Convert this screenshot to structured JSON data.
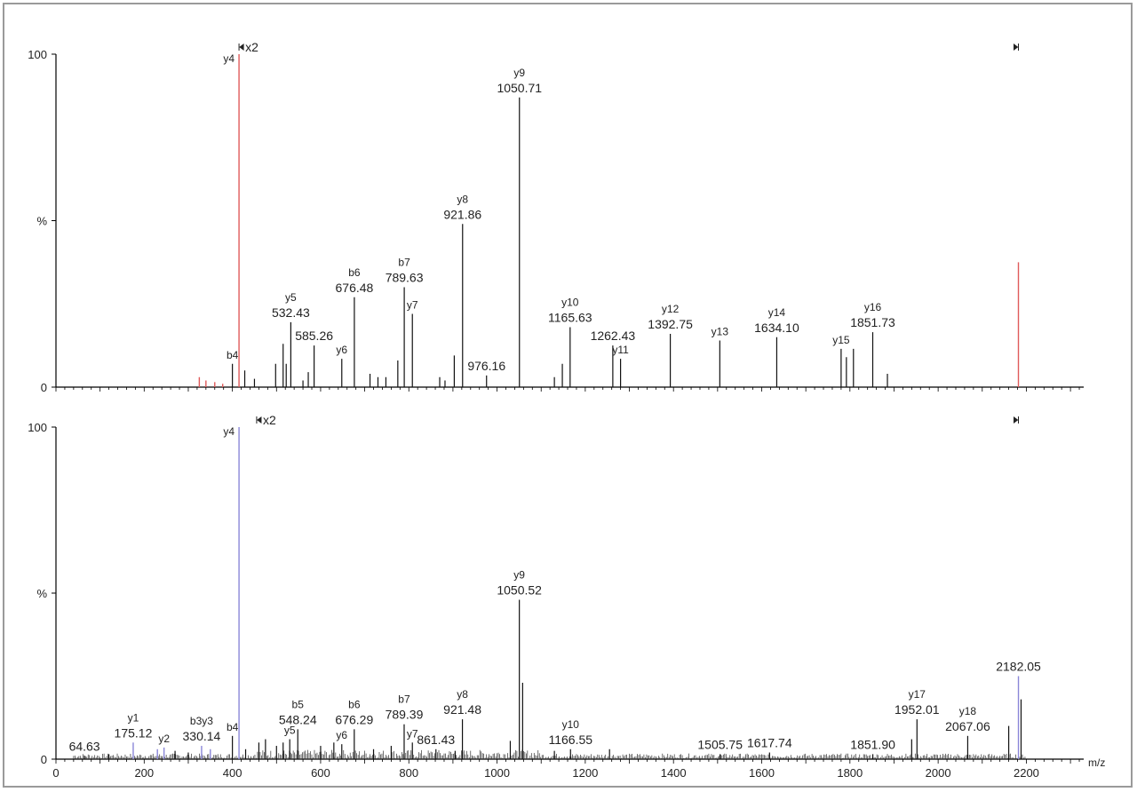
{
  "chart_data": [
    {
      "type": "bar",
      "id": "top",
      "xlim": [
        0,
        2330
      ],
      "ylim": [
        0,
        100
      ],
      "y_ticks": [
        {
          "value": 0,
          "label": "0"
        },
        {
          "value": 50,
          "label": "%"
        },
        {
          "value": 100,
          "label": "100"
        }
      ],
      "x_ticks": [],
      "xlabel": "",
      "scale_marker": {
        "label": "x2",
        "color": "#d9534f",
        "start_mz": 415,
        "end_mz": 2182
      },
      "peaks_colored": [
        {
          "mz": 415.0,
          "intensity": 100,
          "color": "#e05a5a"
        },
        {
          "mz": 2182.0,
          "intensity": 37.5,
          "color": "#e05a5a"
        },
        {
          "mz": 325,
          "intensity": 3,
          "color": "#e05a5a"
        },
        {
          "mz": 340,
          "intensity": 2,
          "color": "#e05a5a"
        },
        {
          "mz": 360,
          "intensity": 1.5,
          "color": "#e05a5a"
        },
        {
          "mz": 378,
          "intensity": 1,
          "color": "#e05a5a"
        }
      ],
      "peaks": [
        {
          "mz": 400,
          "intensity": 7
        },
        {
          "mz": 428,
          "intensity": 5
        },
        {
          "mz": 450,
          "intensity": 2.5
        },
        {
          "mz": 498,
          "intensity": 7
        },
        {
          "mz": 515,
          "intensity": 13
        },
        {
          "mz": 522,
          "intensity": 7
        },
        {
          "mz": 532.43,
          "intensity": 19.5
        },
        {
          "mz": 560,
          "intensity": 2
        },
        {
          "mz": 572,
          "intensity": 4.5
        },
        {
          "mz": 585.26,
          "intensity": 12.5
        },
        {
          "mz": 648,
          "intensity": 8.5
        },
        {
          "mz": 676.48,
          "intensity": 27
        },
        {
          "mz": 712,
          "intensity": 4
        },
        {
          "mz": 730,
          "intensity": 3
        },
        {
          "mz": 748,
          "intensity": 3
        },
        {
          "mz": 775,
          "intensity": 8
        },
        {
          "mz": 789.63,
          "intensity": 30
        },
        {
          "mz": 808,
          "intensity": 22
        },
        {
          "mz": 870,
          "intensity": 3
        },
        {
          "mz": 882,
          "intensity": 2
        },
        {
          "mz": 903,
          "intensity": 9.5
        },
        {
          "mz": 921.86,
          "intensity": 49
        },
        {
          "mz": 976.16,
          "intensity": 3.5
        },
        {
          "mz": 1050.71,
          "intensity": 87
        },
        {
          "mz": 1130,
          "intensity": 3
        },
        {
          "mz": 1148,
          "intensity": 7
        },
        {
          "mz": 1165.63,
          "intensity": 18
        },
        {
          "mz": 1262.43,
          "intensity": 12.5
        },
        {
          "mz": 1280,
          "intensity": 8.5
        },
        {
          "mz": 1392.75,
          "intensity": 16
        },
        {
          "mz": 1505,
          "intensity": 14
        },
        {
          "mz": 1634.1,
          "intensity": 15
        },
        {
          "mz": 1780,
          "intensity": 11.5
        },
        {
          "mz": 1792,
          "intensity": 9
        },
        {
          "mz": 1808,
          "intensity": 11.5
        },
        {
          "mz": 1851.73,
          "intensity": 16.5
        },
        {
          "mz": 1885,
          "intensity": 4
        }
      ],
      "annotations": [
        {
          "mz": 415,
          "intensity": 100,
          "ion": "y4",
          "value": "",
          "side": "left"
        },
        {
          "mz": 1050.71,
          "intensity": 87,
          "ion": "y9",
          "value": "1050.71"
        },
        {
          "mz": 921.86,
          "intensity": 49,
          "ion": "y8",
          "value": "921.86"
        },
        {
          "mz": 789.63,
          "intensity": 30,
          "ion": "b7",
          "value": "789.63"
        },
        {
          "mz": 808,
          "intensity": 22,
          "ion": "y7",
          "value": ""
        },
        {
          "mz": 676.48,
          "intensity": 27,
          "ion": "b6",
          "value": "676.48"
        },
        {
          "mz": 532.43,
          "intensity": 19.5,
          "ion": "y5",
          "value": "532.43"
        },
        {
          "mz": 585.26,
          "intensity": 12.5,
          "ion": "",
          "value": "585.26"
        },
        {
          "mz": 648,
          "intensity": 8.5,
          "ion": "y6",
          "value": ""
        },
        {
          "mz": 400,
          "intensity": 7,
          "ion": "b4",
          "value": ""
        },
        {
          "mz": 976.16,
          "intensity": 3.5,
          "ion": "",
          "value": "976.16"
        },
        {
          "mz": 1165.63,
          "intensity": 18,
          "ion": "y10",
          "value": "1165.63"
        },
        {
          "mz": 1262.43,
          "intensity": 12.5,
          "ion": "",
          "value": "1262.43"
        },
        {
          "mz": 1280,
          "intensity": 8.5,
          "ion": "y11",
          "value": ""
        },
        {
          "mz": 1392.75,
          "intensity": 16,
          "ion": "y12",
          "value": "1392.75"
        },
        {
          "mz": 1505,
          "intensity": 14,
          "ion": "y13",
          "value": ""
        },
        {
          "mz": 1634.1,
          "intensity": 15,
          "ion": "y14",
          "value": "1634.10"
        },
        {
          "mz": 1780,
          "intensity": 11.5,
          "ion": "y15",
          "value": ""
        },
        {
          "mz": 1851.73,
          "intensity": 16.5,
          "ion": "y16",
          "value": "1851.73"
        }
      ]
    },
    {
      "type": "bar",
      "id": "bottom",
      "xlim": [
        0,
        2330
      ],
      "ylim": [
        0,
        100
      ],
      "y_ticks": [
        {
          "value": 0,
          "label": "0"
        },
        {
          "value": 50,
          "label": "%"
        },
        {
          "value": 100,
          "label": "100"
        }
      ],
      "x_ticks": [
        {
          "value": 0,
          "label": "0"
        },
        {
          "value": 200,
          "label": "200"
        },
        {
          "value": 400,
          "label": "400"
        },
        {
          "value": 600,
          "label": "600"
        },
        {
          "value": 800,
          "label": "800"
        },
        {
          "value": 1000,
          "label": "1000"
        },
        {
          "value": 1200,
          "label": "1200"
        },
        {
          "value": 1400,
          "label": "1400"
        },
        {
          "value": 1600,
          "label": "1600"
        },
        {
          "value": 1800,
          "label": "1800"
        },
        {
          "value": 2000,
          "label": "2000"
        },
        {
          "value": 2200,
          "label": "2200"
        }
      ],
      "xlabel": "m/z",
      "scale_marker": {
        "label": "x2",
        "color": "#d9534f",
        "start_mz": 455,
        "end_mz": 2182
      },
      "peaks_colored": [
        {
          "mz": 415.0,
          "intensity": 100,
          "color": "#8a86d8"
        },
        {
          "mz": 2182.05,
          "intensity": 25,
          "color": "#8a86d8"
        },
        {
          "mz": 175.12,
          "intensity": 5,
          "color": "#8a86d8"
        },
        {
          "mz": 230,
          "intensity": 3,
          "color": "#8a86d8"
        },
        {
          "mz": 245,
          "intensity": 3.5,
          "color": "#8a86d8"
        },
        {
          "mz": 330.14,
          "intensity": 4,
          "color": "#8a86d8"
        },
        {
          "mz": 350,
          "intensity": 3,
          "color": "#8a86d8"
        }
      ],
      "peaks": [
        {
          "mz": 64.63,
          "intensity": 1
        },
        {
          "mz": 120,
          "intensity": 1.5
        },
        {
          "mz": 270,
          "intensity": 2.5
        },
        {
          "mz": 300,
          "intensity": 2
        },
        {
          "mz": 400,
          "intensity": 7
        },
        {
          "mz": 430,
          "intensity": 3
        },
        {
          "mz": 460,
          "intensity": 5
        },
        {
          "mz": 475,
          "intensity": 6
        },
        {
          "mz": 500,
          "intensity": 4
        },
        {
          "mz": 515,
          "intensity": 5
        },
        {
          "mz": 530,
          "intensity": 6
        },
        {
          "mz": 548.24,
          "intensity": 9
        },
        {
          "mz": 600,
          "intensity": 4
        },
        {
          "mz": 630,
          "intensity": 5
        },
        {
          "mz": 648,
          "intensity": 4.5
        },
        {
          "mz": 676.29,
          "intensity": 9
        },
        {
          "mz": 720,
          "intensity": 3
        },
        {
          "mz": 760,
          "intensity": 4
        },
        {
          "mz": 789.39,
          "intensity": 10.5
        },
        {
          "mz": 808,
          "intensity": 5
        },
        {
          "mz": 861.43,
          "intensity": 3
        },
        {
          "mz": 905,
          "intensity": 2.5
        },
        {
          "mz": 921.48,
          "intensity": 12
        },
        {
          "mz": 1030,
          "intensity": 5.5
        },
        {
          "mz": 1050.52,
          "intensity": 48
        },
        {
          "mz": 1058,
          "intensity": 23
        },
        {
          "mz": 1130,
          "intensity": 2.5
        },
        {
          "mz": 1166.55,
          "intensity": 3
        },
        {
          "mz": 1255,
          "intensity": 3
        },
        {
          "mz": 1505.75,
          "intensity": 1.5
        },
        {
          "mz": 1617.74,
          "intensity": 2
        },
        {
          "mz": 1851.9,
          "intensity": 1.5
        },
        {
          "mz": 1940,
          "intensity": 6
        },
        {
          "mz": 1952.01,
          "intensity": 12
        },
        {
          "mz": 2067.06,
          "intensity": 7
        },
        {
          "mz": 2160,
          "intensity": 10
        },
        {
          "mz": 2188,
          "intensity": 18
        }
      ],
      "annotations": [
        {
          "mz": 415,
          "intensity": 100,
          "ion": "y4",
          "value": "",
          "side": "left"
        },
        {
          "mz": 1050.52,
          "intensity": 48,
          "ion": "y9",
          "value": "1050.52"
        },
        {
          "mz": 2182.05,
          "intensity": 25,
          "ion": "",
          "value": "2182.05"
        },
        {
          "mz": 1952.01,
          "intensity": 12,
          "ion": "y17",
          "value": "1952.01"
        },
        {
          "mz": 2067.06,
          "intensity": 7,
          "ion": "y18",
          "value": "2067.06"
        },
        {
          "mz": 921.48,
          "intensity": 12,
          "ion": "y8",
          "value": "921.48"
        },
        {
          "mz": 789.39,
          "intensity": 10.5,
          "ion": "b7",
          "value": "789.39"
        },
        {
          "mz": 808,
          "intensity": 5,
          "ion": "y7",
          "value": ""
        },
        {
          "mz": 861.43,
          "intensity": 3,
          "ion": "",
          "value": "861.43"
        },
        {
          "mz": 676.29,
          "intensity": 9,
          "ion": "b6",
          "value": "676.29"
        },
        {
          "mz": 648,
          "intensity": 4.5,
          "ion": "y6",
          "value": ""
        },
        {
          "mz": 548.24,
          "intensity": 9,
          "ion": "b5",
          "value": "548.24"
        },
        {
          "mz": 530,
          "intensity": 6,
          "ion": "y5",
          "value": ""
        },
        {
          "mz": 400,
          "intensity": 7,
          "ion": "b4",
          "value": ""
        },
        {
          "mz": 330.14,
          "intensity": 4,
          "ion": "b3y3",
          "value": "330.14"
        },
        {
          "mz": 245,
          "intensity": 3.5,
          "ion": "y2",
          "value": ""
        },
        {
          "mz": 175.12,
          "intensity": 5,
          "ion": "y1",
          "value": "175.12"
        },
        {
          "mz": 64.63,
          "intensity": 1,
          "ion": "",
          "value": "64.63"
        },
        {
          "mz": 1166.55,
          "intensity": 3,
          "ion": "y10",
          "value": "1166.55"
        },
        {
          "mz": 1505.75,
          "intensity": 1.5,
          "ion": "",
          "value": "1505.75"
        },
        {
          "mz": 1617.74,
          "intensity": 2,
          "ion": "",
          "value": "1617.74"
        },
        {
          "mz": 1851.9,
          "intensity": 1.5,
          "ion": "",
          "value": "1851.90"
        }
      ]
    }
  ]
}
